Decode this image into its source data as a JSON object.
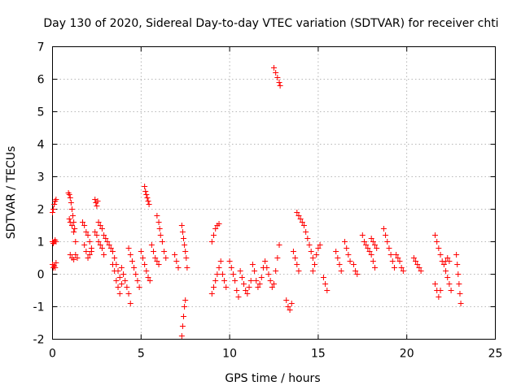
{
  "chart_data": {
    "type": "scatter",
    "title": "Day 130 of 2020, Sidereal Day-to-day VTEC variation (SDTVAR) for receiver chti",
    "xlabel": "GPS time / hours",
    "ylabel": "SDTVAR / TECUs",
    "xlim": [
      0,
      25
    ],
    "ylim": [
      -2,
      7
    ],
    "xticks": [
      0,
      5,
      10,
      15,
      20,
      25
    ],
    "yticks": [
      -2,
      -1,
      0,
      1,
      2,
      3,
      4,
      5,
      6,
      7
    ],
    "xtick_labels": [
      "0",
      "5",
      "10",
      "15",
      "20",
      "25"
    ],
    "ytick_labels": [
      "-2",
      "-1",
      "0",
      "1",
      "2",
      "3",
      "4",
      "5",
      "6",
      "7"
    ],
    "grid": true,
    "marker": "+",
    "series": [
      {
        "name": "SDTVAR",
        "color": "#ff0000",
        "segments": [
          [
            [
              0.0,
              1.9
            ],
            [
              0.05,
              2.0
            ],
            [
              0.1,
              2.15
            ],
            [
              0.15,
              2.25
            ],
            [
              0.2,
              2.3
            ]
          ],
          [
            [
              0.0,
              1.0
            ],
            [
              0.05,
              0.95
            ],
            [
              0.1,
              1.0
            ],
            [
              0.15,
              1.05
            ],
            [
              0.2,
              1.0
            ]
          ],
          [
            [
              0.0,
              0.3
            ],
            [
              0.05,
              0.2
            ],
            [
              0.1,
              0.25
            ],
            [
              0.15,
              0.2
            ],
            [
              0.2,
              0.35
            ]
          ],
          [
            [
              0.9,
              2.5
            ],
            [
              0.95,
              2.45
            ],
            [
              1.0,
              2.35
            ],
            [
              1.05,
              2.2
            ],
            [
              1.1,
              2.0
            ],
            [
              1.15,
              1.8
            ],
            [
              1.2,
              1.6
            ],
            [
              1.25,
              1.4
            ]
          ],
          [
            [
              0.95,
              1.7
            ],
            [
              1.0,
              1.6
            ],
            [
              1.1,
              1.5
            ],
            [
              1.2,
              1.3
            ],
            [
              1.3,
              1.0
            ]
          ],
          [
            [
              1.0,
              0.6
            ],
            [
              1.1,
              0.5
            ],
            [
              1.2,
              0.45
            ],
            [
              1.3,
              0.6
            ],
            [
              1.4,
              0.5
            ]
          ],
          [
            [
              1.7,
              1.6
            ],
            [
              1.8,
              1.5
            ],
            [
              1.9,
              1.3
            ],
            [
              2.0,
              1.2
            ],
            [
              2.1,
              1.0
            ],
            [
              2.2,
              0.8
            ]
          ],
          [
            [
              1.8,
              0.9
            ],
            [
              1.9,
              0.7
            ],
            [
              2.0,
              0.5
            ],
            [
              2.1,
              0.6
            ],
            [
              2.2,
              0.7
            ]
          ],
          [
            [
              2.4,
              2.3
            ],
            [
              2.45,
              2.2
            ],
            [
              2.5,
              2.1
            ],
            [
              2.55,
              2.25
            ]
          ],
          [
            [
              2.4,
              1.3
            ],
            [
              2.5,
              1.2
            ],
            [
              2.6,
              1.0
            ],
            [
              2.7,
              0.9
            ],
            [
              2.8,
              0.8
            ],
            [
              2.9,
              0.6
            ]
          ],
          [
            [
              2.6,
              1.6
            ],
            [
              2.7,
              1.5
            ],
            [
              2.8,
              1.4
            ],
            [
              2.9,
              1.2
            ],
            [
              3.0,
              1.1
            ],
            [
              3.1,
              1.0
            ]
          ],
          [
            [
              3.2,
              0.9
            ],
            [
              3.3,
              0.8
            ],
            [
              3.4,
              0.7
            ],
            [
              3.5,
              0.5
            ],
            [
              3.6,
              0.3
            ],
            [
              3.7,
              0.1
            ],
            [
              3.8,
              -0.1
            ],
            [
              3.9,
              -0.3
            ]
          ],
          [
            [
              3.4,
              0.3
            ],
            [
              3.5,
              0.1
            ],
            [
              3.6,
              -0.2
            ],
            [
              3.7,
              -0.4
            ],
            [
              3.8,
              -0.6
            ]
          ],
          [
            [
              3.9,
              0.2
            ],
            [
              4.0,
              0.0
            ],
            [
              4.1,
              -0.2
            ],
            [
              4.2,
              -0.4
            ],
            [
              4.3,
              -0.6
            ],
            [
              4.4,
              -0.9
            ]
          ],
          [
            [
              4.3,
              0.8
            ],
            [
              4.4,
              0.6
            ],
            [
              4.5,
              0.4
            ],
            [
              4.6,
              0.2
            ],
            [
              4.7,
              0.0
            ],
            [
              4.8,
              -0.2
            ],
            [
              4.9,
              -0.4
            ]
          ],
          [
            [
              5.2,
              2.7
            ],
            [
              5.25,
              2.55
            ],
            [
              5.3,
              2.45
            ],
            [
              5.35,
              2.35
            ],
            [
              5.4,
              2.25
            ],
            [
              5.45,
              2.15
            ]
          ],
          [
            [
              5.0,
              0.7
            ],
            [
              5.1,
              0.5
            ],
            [
              5.2,
              0.3
            ],
            [
              5.3,
              0.1
            ],
            [
              5.4,
              -0.1
            ],
            [
              5.5,
              -0.2
            ]
          ],
          [
            [
              5.6,
              0.9
            ],
            [
              5.7,
              0.7
            ],
            [
              5.8,
              0.5
            ],
            [
              5.9,
              0.4
            ],
            [
              6.0,
              0.3
            ]
          ],
          [
            [
              5.9,
              1.8
            ],
            [
              6.0,
              1.6
            ],
            [
              6.05,
              1.4
            ],
            [
              6.1,
              1.2
            ],
            [
              6.2,
              1.0
            ],
            [
              6.3,
              0.7
            ],
            [
              6.4,
              0.5
            ]
          ],
          [
            [
              6.9,
              0.6
            ],
            [
              7.0,
              0.4
            ],
            [
              7.1,
              0.2
            ]
          ],
          [
            [
              7.3,
              1.5
            ],
            [
              7.35,
              1.3
            ],
            [
              7.4,
              1.1
            ],
            [
              7.45,
              0.9
            ],
            [
              7.5,
              0.7
            ],
            [
              7.55,
              0.5
            ],
            [
              7.6,
              0.2
            ]
          ],
          [
            [
              7.3,
              -1.9
            ],
            [
              7.35,
              -1.6
            ],
            [
              7.4,
              -1.3
            ],
            [
              7.45,
              -1.0
            ],
            [
              7.5,
              -0.8
            ]
          ],
          [
            [
              9.0,
              1.0
            ],
            [
              9.1,
              1.2
            ],
            [
              9.2,
              1.4
            ],
            [
              9.3,
              1.5
            ],
            [
              9.4,
              1.55
            ]
          ],
          [
            [
              9.0,
              -0.6
            ],
            [
              9.1,
              -0.4
            ],
            [
              9.2,
              -0.2
            ],
            [
              9.3,
              0.0
            ],
            [
              9.4,
              0.2
            ],
            [
              9.5,
              0.4
            ]
          ],
          [
            [
              9.6,
              0.0
            ],
            [
              9.7,
              -0.2
            ],
            [
              9.8,
              -0.4
            ]
          ],
          [
            [
              10.0,
              0.4
            ],
            [
              10.1,
              0.2
            ],
            [
              10.2,
              0.0
            ],
            [
              10.3,
              -0.2
            ],
            [
              10.4,
              -0.5
            ],
            [
              10.5,
              -0.7
            ]
          ],
          [
            [
              10.6,
              0.1
            ],
            [
              10.7,
              -0.1
            ],
            [
              10.8,
              -0.3
            ],
            [
              10.9,
              -0.5
            ],
            [
              11.0,
              -0.6
            ],
            [
              11.1,
              -0.4
            ],
            [
              11.2,
              -0.2
            ]
          ],
          [
            [
              11.3,
              0.3
            ],
            [
              11.4,
              0.1
            ],
            [
              11.5,
              -0.2
            ],
            [
              11.6,
              -0.4
            ],
            [
              11.7,
              -0.3
            ],
            [
              11.8,
              -0.1
            ],
            [
              11.9,
              0.2
            ]
          ],
          [
            [
              12.0,
              0.4
            ],
            [
              12.1,
              0.2
            ],
            [
              12.2,
              0.0
            ],
            [
              12.3,
              -0.2
            ],
            [
              12.4,
              -0.4
            ],
            [
              12.5,
              -0.3
            ],
            [
              12.6,
              0.1
            ],
            [
              12.7,
              0.5
            ],
            [
              12.8,
              0.9
            ]
          ],
          [
            [
              12.5,
              6.35
            ],
            [
              12.6,
              6.2
            ],
            [
              12.7,
              6.05
            ],
            [
              12.8,
              5.9
            ],
            [
              12.85,
              5.8
            ]
          ],
          [
            [
              13.2,
              -0.8
            ],
            [
              13.3,
              -1.0
            ],
            [
              13.4,
              -1.1
            ],
            [
              13.5,
              -0.9
            ]
          ],
          [
            [
              13.6,
              0.7
            ],
            [
              13.7,
              0.5
            ],
            [
              13.8,
              0.3
            ],
            [
              13.9,
              0.1
            ]
          ],
          [
            [
              13.8,
              1.9
            ],
            [
              13.9,
              1.8
            ],
            [
              14.0,
              1.7
            ],
            [
              14.1,
              1.6
            ],
            [
              14.2,
              1.5
            ]
          ],
          [
            [
              14.3,
              1.3
            ],
            [
              14.4,
              1.1
            ],
            [
              14.5,
              0.9
            ],
            [
              14.6,
              0.7
            ],
            [
              14.7,
              0.5
            ]
          ],
          [
            [
              14.7,
              0.1
            ],
            [
              14.8,
              0.3
            ],
            [
              14.9,
              0.6
            ],
            [
              15.0,
              0.8
            ],
            [
              15.1,
              0.9
            ]
          ],
          [
            [
              15.3,
              -0.1
            ],
            [
              15.4,
              -0.3
            ],
            [
              15.5,
              -0.5
            ]
          ],
          [
            [
              16.0,
              0.7
            ],
            [
              16.1,
              0.5
            ],
            [
              16.2,
              0.3
            ],
            [
              16.3,
              0.1
            ]
          ],
          [
            [
              16.5,
              1.0
            ],
            [
              16.6,
              0.8
            ],
            [
              16.7,
              0.6
            ],
            [
              16.8,
              0.4
            ]
          ],
          [
            [
              17.0,
              0.3
            ],
            [
              17.1,
              0.1
            ],
            [
              17.2,
              0.0
            ]
          ],
          [
            [
              17.5,
              1.2
            ],
            [
              17.6,
              1.0
            ],
            [
              17.7,
              0.9
            ],
            [
              17.8,
              0.8
            ],
            [
              17.9,
              0.7
            ],
            [
              18.0,
              0.6
            ],
            [
              18.1,
              0.4
            ],
            [
              18.2,
              0.2
            ]
          ],
          [
            [
              18.0,
              1.1
            ],
            [
              18.1,
              1.0
            ],
            [
              18.2,
              0.9
            ],
            [
              18.3,
              0.8
            ]
          ],
          [
            [
              18.7,
              1.4
            ],
            [
              18.8,
              1.2
            ],
            [
              18.9,
              1.0
            ],
            [
              19.0,
              0.8
            ],
            [
              19.1,
              0.6
            ],
            [
              19.2,
              0.4
            ],
            [
              19.3,
              0.2
            ]
          ],
          [
            [
              19.4,
              0.6
            ],
            [
              19.5,
              0.5
            ],
            [
              19.6,
              0.4
            ],
            [
              19.7,
              0.2
            ],
            [
              19.8,
              0.1
            ]
          ],
          [
            [
              20.4,
              0.5
            ],
            [
              20.5,
              0.4
            ],
            [
              20.6,
              0.3
            ],
            [
              20.7,
              0.2
            ],
            [
              20.8,
              0.1
            ]
          ],
          [
            [
              21.6,
              1.2
            ],
            [
              21.7,
              1.0
            ],
            [
              21.8,
              0.8
            ],
            [
              21.9,
              0.6
            ],
            [
              22.0,
              0.4
            ]
          ],
          [
            [
              21.6,
              -0.3
            ],
            [
              21.7,
              -0.5
            ],
            [
              21.8,
              -0.7
            ],
            [
              21.9,
              -0.5
            ]
          ],
          [
            [
              22.1,
              0.3
            ],
            [
              22.2,
              0.1
            ],
            [
              22.3,
              -0.1
            ],
            [
              22.4,
              -0.3
            ],
            [
              22.5,
              -0.5
            ]
          ],
          [
            [
              22.2,
              0.4
            ],
            [
              22.3,
              0.5
            ],
            [
              22.4,
              0.4
            ]
          ],
          [
            [
              22.8,
              0.6
            ],
            [
              22.85,
              0.3
            ],
            [
              22.9,
              0.0
            ],
            [
              22.95,
              -0.3
            ],
            [
              23.0,
              -0.6
            ],
            [
              23.05,
              -0.9
            ]
          ]
        ]
      }
    ]
  }
}
